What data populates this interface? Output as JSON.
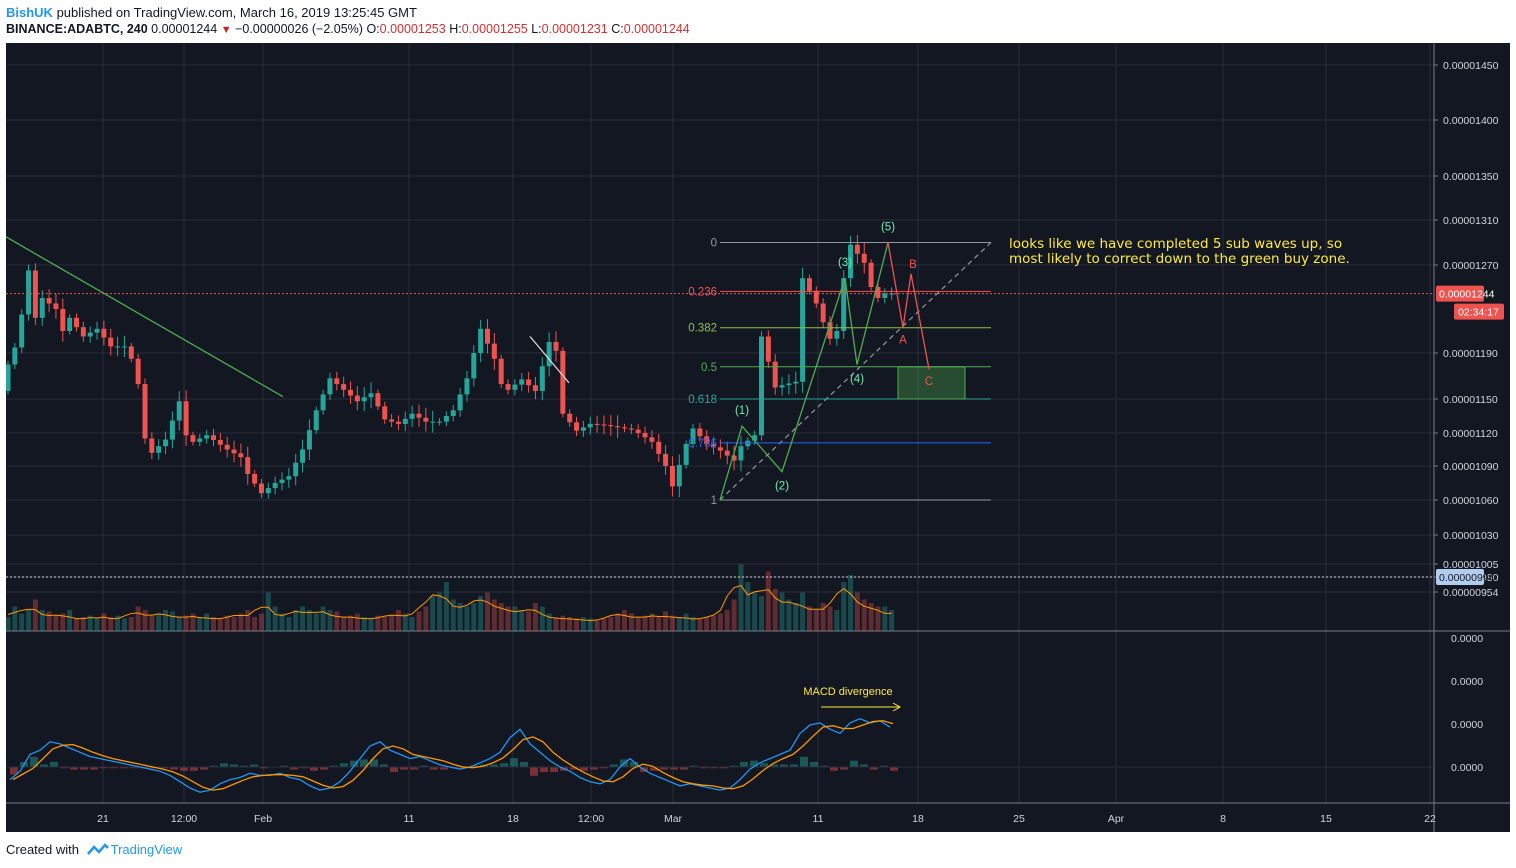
{
  "header": {
    "author": "BishUK",
    "published": "published on TradingView.com, March 16, 2019 13:25:45 GMT",
    "symbol": "BINANCE:ADABTC, 240",
    "last": "0.00001244",
    "change": "−0.00000026 (−2.05%)",
    "o_label": "O:",
    "o_value": "0.00001253",
    "h_label": "H:",
    "h_value": "0.00001255",
    "l_label": "L:",
    "l_value": "0.00001231",
    "c_label": "C:",
    "c_value": "0.00001244"
  },
  "footer": {
    "created": "Created with",
    "brand": "TradingView"
  },
  "colors": {
    "background": "#131722",
    "up": "#26a69a",
    "down": "#ef5350",
    "grid": "#2a2e39"
  },
  "chart_data": {
    "type": "candlestick",
    "title": "",
    "price_axis": {
      "ticks": [
        "0.00001450",
        "0.00001400",
        "0.00001350",
        "0.00001310",
        "0.00001270",
        "0.00001190",
        "0.00001150",
        "0.00001120",
        "0.00001090",
        "0.00001060",
        "0.00001030",
        "0.00001005",
        "0.00000980",
        "0.00000954"
      ],
      "current_price": "0.00001244",
      "countdown": "02:34:17",
      "volume_marker": "0.00000994"
    },
    "macd_axis": {
      "ticks": [
        "0.0000",
        "0.0000",
        "0.0000",
        "0.0000"
      ]
    },
    "time_axis": {
      "ticks": [
        "21",
        "12:00",
        "Feb",
        "11",
        "18",
        "12:00",
        "Mar",
        "11",
        "18",
        "25",
        "Apr",
        "8",
        "15",
        "22"
      ]
    },
    "price_path": [
      [
        0,
        1157
      ],
      [
        1,
        1180
      ],
      [
        2,
        1195
      ],
      [
        3,
        1225
      ],
      [
        4,
        1265
      ],
      [
        5,
        1222
      ],
      [
        6,
        1240
      ],
      [
        8,
        1230
      ],
      [
        9,
        1210
      ],
      [
        10,
        1222
      ],
      [
        12,
        1205
      ],
      [
        14,
        1212
      ],
      [
        16,
        1196
      ],
      [
        18,
        1196
      ],
      [
        19,
        1185
      ],
      [
        20,
        1163
      ],
      [
        21,
        1115
      ],
      [
        22,
        1102
      ],
      [
        24,
        1114
      ],
      [
        26,
        1148
      ],
      [
        27,
        1118
      ],
      [
        28,
        1112
      ],
      [
        30,
        1118
      ],
      [
        33,
        1105
      ],
      [
        35,
        1098
      ],
      [
        36,
        1083
      ],
      [
        38,
        1066
      ],
      [
        40,
        1075
      ],
      [
        42,
        1081
      ],
      [
        44,
        1105
      ],
      [
        46,
        1140
      ],
      [
        48,
        1168
      ],
      [
        50,
        1158
      ],
      [
        52,
        1148
      ],
      [
        54,
        1155
      ],
      [
        56,
        1132
      ],
      [
        58,
        1128
      ],
      [
        60,
        1137
      ],
      [
        62,
        1130
      ],
      [
        64,
        1130
      ],
      [
        66,
        1140
      ],
      [
        68,
        1168
      ],
      [
        70,
        1212
      ],
      [
        72,
        1185
      ],
      [
        73,
        1163
      ],
      [
        74,
        1158
      ],
      [
        76,
        1167
      ],
      [
        78,
        1157
      ],
      [
        80,
        1200
      ],
      [
        81,
        1192
      ],
      [
        82,
        1137
      ],
      [
        84,
        1122
      ],
      [
        86,
        1128
      ],
      [
        88,
        1127
      ],
      [
        90,
        1125
      ],
      [
        92,
        1123
      ],
      [
        93,
        1120
      ],
      [
        95,
        1112
      ],
      [
        97,
        1090
      ],
      [
        98,
        1072
      ],
      [
        100,
        1110
      ],
      [
        101,
        1124
      ],
      [
        103,
        1110
      ],
      [
        105,
        1104
      ],
      [
        107,
        1095
      ],
      [
        108,
        1108
      ],
      [
        110,
        1118
      ],
      [
        111,
        1205
      ],
      [
        113,
        1160
      ],
      [
        114,
        1162
      ],
      [
        116,
        1165
      ],
      [
        117,
        1258
      ],
      [
        119,
        1235
      ],
      [
        120,
        1218
      ],
      [
        121,
        1203
      ],
      [
        122,
        1210
      ],
      [
        123,
        1258
      ],
      [
        124,
        1288
      ],
      [
        125,
        1280
      ],
      [
        126,
        1272
      ],
      [
        127,
        1250
      ],
      [
        128,
        1240
      ],
      [
        129,
        1244
      ]
    ],
    "volume_levels": [
      0.2,
      0.35,
      0.25,
      0.3,
      0.45,
      0.3,
      0.28,
      0.22,
      0.25,
      0.3,
      0.18,
      0.2,
      0.22,
      0.18,
      0.25,
      0.2,
      0.22,
      0.18,
      0.2,
      0.35,
      0.3,
      0.22,
      0.25,
      0.3,
      0.28,
      0.2,
      0.22,
      0.25,
      0.2,
      0.25,
      0.2,
      0.18,
      0.22,
      0.2,
      0.25,
      0.3,
      0.2,
      0.25,
      0.55,
      0.35,
      0.25,
      0.2,
      0.3,
      0.35,
      0.3,
      0.25,
      0.35,
      0.3,
      0.28,
      0.2,
      0.22,
      0.25,
      0.2,
      0.18,
      0.22,
      0.2,
      0.22,
      0.3,
      0.25,
      0.2,
      0.28,
      0.35,
      0.5,
      0.55,
      0.7,
      0.45,
      0.4,
      0.35,
      0.4,
      0.5,
      0.55,
      0.45,
      0.4,
      0.35,
      0.35,
      0.3,
      0.28,
      0.4,
      0.35,
      0.25,
      0.2,
      0.22,
      0.2,
      0.18,
      0.2,
      0.18,
      0.15,
      0.18,
      0.2,
      0.25,
      0.3,
      0.25,
      0.2,
      0.22,
      0.25,
      0.2,
      0.28,
      0.22,
      0.2,
      0.25,
      0.2,
      0.18,
      0.2,
      0.22,
      0.25,
      0.3,
      0.45,
      0.95,
      0.7,
      0.55,
      0.5,
      0.85,
      0.6,
      0.55,
      0.45,
      0.4,
      0.55,
      0.35,
      0.3,
      0.4,
      0.35,
      0.3,
      0.7,
      0.8,
      0.55,
      0.45,
      0.4,
      0.35,
      0.35,
      0.3
    ],
    "macd_levels": [
      -0.3,
      -0.1,
      0.3,
      0.4,
      0.6,
      0.55,
      0.45,
      0.35,
      0.25,
      0.2,
      0.15,
      0.1,
      0.05,
      0.0,
      -0.05,
      -0.1,
      -0.2,
      -0.35,
      -0.5,
      -0.6,
      -0.55,
      -0.4,
      -0.3,
      -0.25,
      -0.15,
      -0.2,
      -0.2,
      -0.15,
      -0.25,
      -0.3,
      -0.45,
      -0.55,
      -0.5,
      -0.35,
      -0.1,
      0.2,
      0.5,
      0.6,
      0.4,
      0.3,
      0.2,
      0.25,
      0.15,
      0.05,
      0.0,
      -0.05,
      0.0,
      0.1,
      0.2,
      0.35,
      0.7,
      0.9,
      0.55,
      0.35,
      0.15,
      0.0,
      -0.1,
      -0.25,
      -0.35,
      -0.4,
      -0.3,
      0.0,
      0.2,
      0.0,
      -0.15,
      -0.25,
      -0.35,
      -0.45,
      -0.4,
      -0.45,
      -0.5,
      -0.55,
      -0.5,
      -0.3,
      -0.05,
      0.1,
      0.2,
      0.3,
      0.4,
      0.8,
      1.0,
      1.05,
      0.9,
      0.8,
      1.05,
      1.15,
      1.05,
      1.1,
      0.95
    ],
    "fib_levels": [
      {
        "ratio": "0",
        "price": 1290
      },
      {
        "ratio": "0.236",
        "price": 1246
      },
      {
        "ratio": "0.382",
        "price": 1213
      },
      {
        "ratio": "0.5",
        "price": 1178
      },
      {
        "ratio": "0.618",
        "price": 1150
      },
      {
        "ratio": "0.786",
        "price": 1111
      },
      {
        "ratio": "1",
        "price": 1060
      }
    ],
    "waves": [
      {
        "label": "(1)",
        "bar": 106,
        "price": 1126
      },
      {
        "label": "(2)",
        "bar": 114,
        "price": 1085
      },
      {
        "label": "(3)",
        "bar": 121,
        "price": 1258
      },
      {
        "label": "(4)",
        "bar": 125,
        "price": 1180
      },
      {
        "label": "(5)",
        "bar": 129,
        "price": 1290
      }
    ],
    "corrective": [
      {
        "label": "A",
        "price": 1213
      },
      {
        "label": "B",
        "price": 1262
      },
      {
        "label": "C",
        "price": 1176
      }
    ],
    "annotations": {
      "note": "looks like we have completed 5 sub waves up, so most likely to correct down to the green buy zone.",
      "macd": "MACD divergence"
    }
  }
}
